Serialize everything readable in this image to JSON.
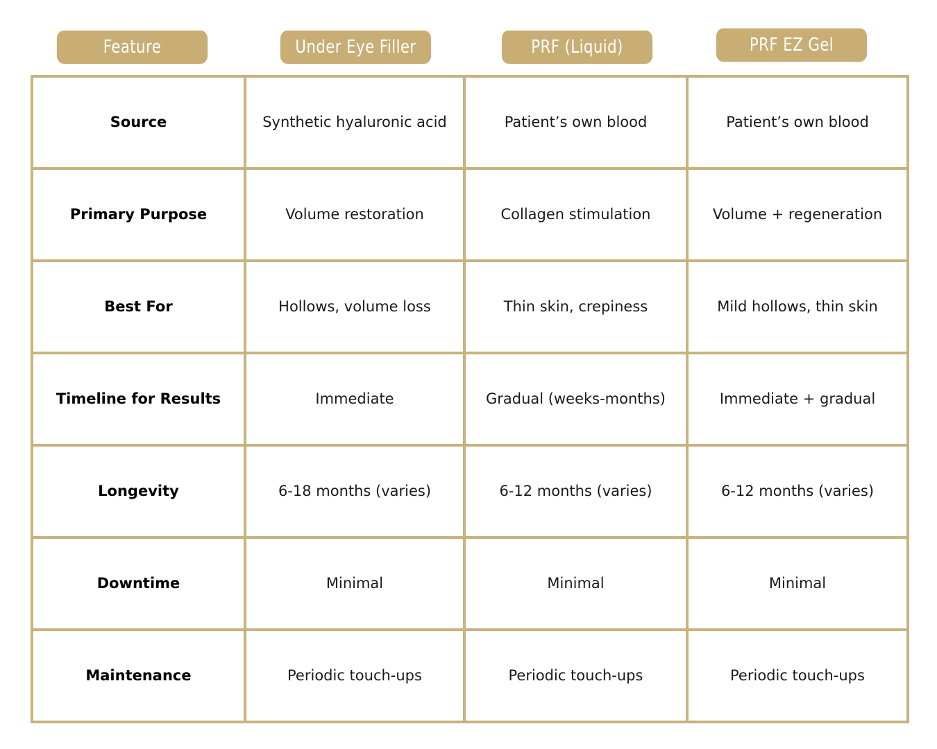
{
  "header": {
    "columns": [
      "Feature",
      "Under Eye Filler",
      "PRF (Liquid)",
      "PRF EZ Gel"
    ]
  },
  "rows": [
    {
      "feature": "Source",
      "filler": "Synthetic hyaluronic acid",
      "prf_liquid": "Patient’s own blood",
      "prf_ez_gel": "Patient’s own blood"
    },
    {
      "feature": "Primary Purpose",
      "filler": "Volume restoration",
      "prf_liquid": "Collagen stimulation",
      "prf_ez_gel": "Volume + regeneration"
    },
    {
      "feature": "Best For",
      "filler": "Hollows, volume loss",
      "prf_liquid": "Thin skin, crepiness",
      "prf_ez_gel": "Mild hollows, thin skin"
    },
    {
      "feature": "Timeline for Results",
      "filler": "Immediate",
      "prf_liquid": "Gradual (weeks-months)",
      "prf_ez_gel": "Immediate + gradual"
    },
    {
      "feature": "Longevity",
      "filler": "6-18 months (varies)",
      "prf_liquid": "6-12 months (varies)",
      "prf_ez_gel": "6-12 months (varies)"
    },
    {
      "feature": "Downtime",
      "filler": "Minimal",
      "prf_liquid": "Minimal",
      "prf_ez_gel": "Minimal"
    },
    {
      "feature": "Maintenance",
      "filler": "Periodic touch-ups",
      "prf_liquid": "Periodic touch-ups",
      "prf_ez_gel": "Periodic touch-ups"
    }
  ],
  "colors": {
    "accent": "#c8ae75",
    "border": "#c8b27e",
    "header_text": "#ffffff",
    "body_text": "#1a1a1a"
  }
}
